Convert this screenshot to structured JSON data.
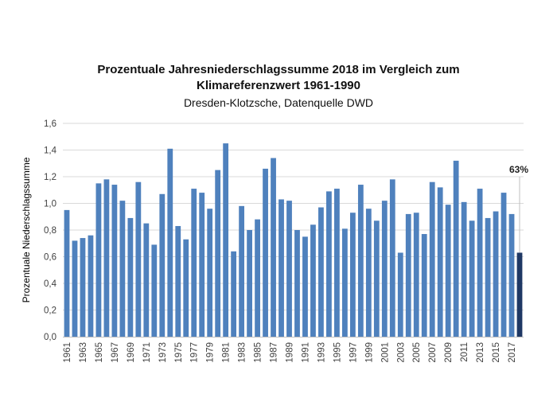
{
  "chart_data": {
    "type": "bar",
    "title_lines": [
      "Prozentuale Jahresniederschlagssumme 2018 im Vergleich zum",
      "Klimareferenzwert 1961-1990"
    ],
    "subtitle": "Dresden-Klotzsche, Datenquelle DWD",
    "ylabel": "Prozentuale Niederschlagssumme",
    "ylim": [
      0,
      1.6
    ],
    "yticks": [
      "0,0",
      "0,2",
      "0,4",
      "0,6",
      "0,8",
      "1,0",
      "1,2",
      "1,4",
      "1,6"
    ],
    "grid": true,
    "categories": [
      "1961",
      "1962",
      "1963",
      "1964",
      "1965",
      "1966",
      "1967",
      "1968",
      "1969",
      "1970",
      "1971",
      "1972",
      "1973",
      "1974",
      "1975",
      "1976",
      "1977",
      "1978",
      "1979",
      "1980",
      "1981",
      "1982",
      "1983",
      "1984",
      "1985",
      "1986",
      "1987",
      "1988",
      "1989",
      "1990",
      "1991",
      "1992",
      "1993",
      "1994",
      "1995",
      "1996",
      "1997",
      "1998",
      "1999",
      "2000",
      "2001",
      "2002",
      "2003",
      "2004",
      "2005",
      "2006",
      "2007",
      "2008",
      "2009",
      "2010",
      "2011",
      "2012",
      "2013",
      "2014",
      "2015",
      "2016",
      "2017",
      "2018"
    ],
    "xtick_labels": [
      "1961",
      "1963",
      "1965",
      "1967",
      "1969",
      "1971",
      "1973",
      "1975",
      "1977",
      "1979",
      "1981",
      "1983",
      "1985",
      "1987",
      "1989",
      "1991",
      "1993",
      "1995",
      "1997",
      "1999",
      "2001",
      "2003",
      "2005",
      "2007",
      "2009",
      "2011",
      "2013",
      "2015",
      "2017"
    ],
    "values": [
      0.95,
      0.72,
      0.74,
      0.76,
      1.15,
      1.18,
      1.14,
      1.02,
      0.89,
      1.16,
      0.85,
      0.69,
      1.07,
      1.41,
      0.83,
      0.73,
      1.11,
      1.08,
      0.96,
      1.25,
      1.45,
      0.64,
      0.98,
      0.8,
      0.88,
      1.26,
      1.34,
      1.03,
      1.02,
      0.8,
      0.75,
      0.84,
      0.97,
      1.09,
      1.11,
      0.81,
      0.93,
      1.14,
      0.96,
      0.87,
      1.02,
      1.18,
      0.63,
      0.92,
      0.93,
      0.77,
      1.16,
      1.12,
      0.99,
      1.32,
      1.01,
      0.87,
      1.11,
      0.89,
      0.94,
      1.08,
      0.92,
      0.63
    ],
    "highlight_index": 57,
    "highlight_label": "63%",
    "colors": {
      "bar": "#4f81bd",
      "highlight": "#1f3864",
      "grid": "#d9d9d9",
      "axis": "#bfbfbf",
      "text": "#404040"
    }
  }
}
